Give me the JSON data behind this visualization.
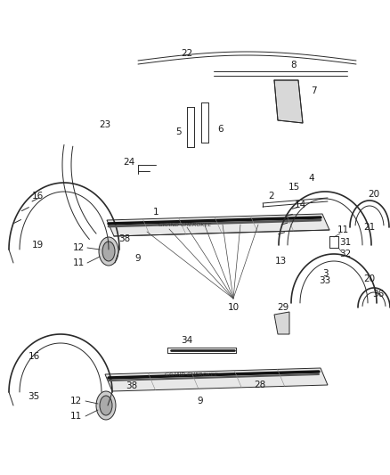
{
  "bg_color": "#ffffff",
  "line_color": "#2a2a2a",
  "label_fontsize": 7.5,
  "lw_thin": 0.7,
  "lw_med": 1.2,
  "lw_thick": 2.5
}
